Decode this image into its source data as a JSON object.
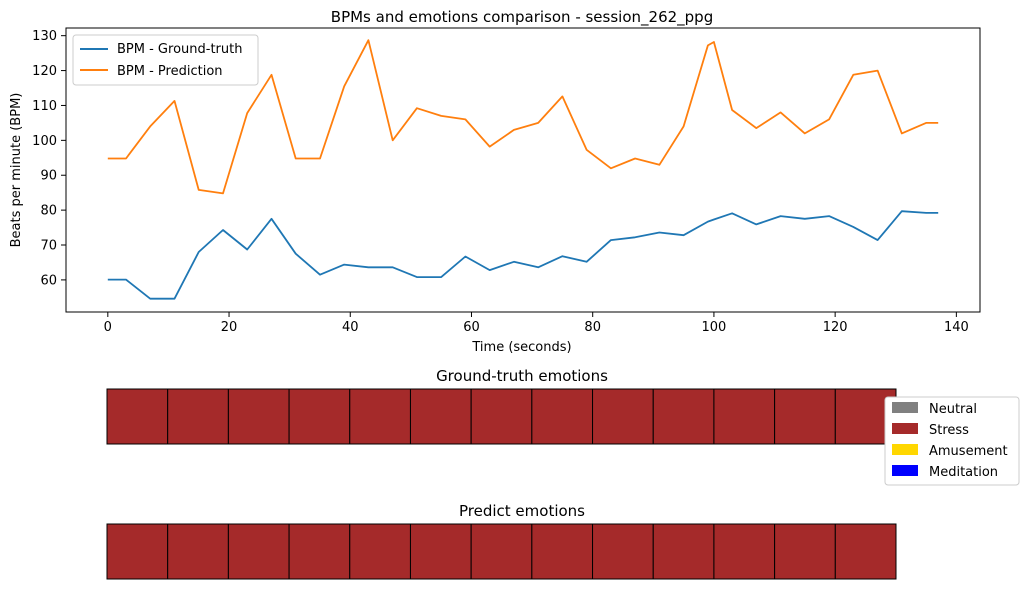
{
  "chart_data": [
    {
      "type": "line",
      "title": "BPMs and emotions comparison - session_262_ppg",
      "xlabel": "Time (seconds)",
      "ylabel": "Beats per minute (BPM)",
      "xlim": [
        -6.9,
        143.9
      ],
      "ylim": [
        50.8,
        132.2
      ],
      "xticks": [
        0,
        20,
        40,
        60,
        80,
        100,
        120,
        140
      ],
      "yticks": [
        60,
        70,
        80,
        90,
        100,
        110,
        120,
        130
      ],
      "grid": false,
      "legend_position": "top-left",
      "x": [
        0,
        3,
        7,
        11,
        15,
        19,
        23,
        27,
        31,
        35,
        39,
        43,
        47,
        51,
        55,
        59,
        63,
        67,
        71,
        75,
        79,
        83,
        87,
        91,
        95,
        99,
        100,
        103,
        107,
        111,
        115,
        119,
        123,
        127,
        131,
        135,
        137
      ],
      "series": [
        {
          "name": "BPM - Ground-truth",
          "color": "#1f77b4",
          "values": [
            60.1,
            60.1,
            54.6,
            54.6,
            68.0,
            74.3,
            68.7,
            77.5,
            67.5,
            61.5,
            64.4,
            63.6,
            63.6,
            60.8,
            60.8,
            66.7,
            62.8,
            65.2,
            63.6,
            66.8,
            65.2,
            71.4,
            72.2,
            73.6,
            72.8,
            76.7,
            77.3,
            79.1,
            75.9,
            78.3,
            77.5,
            78.3,
            75.2,
            71.4,
            79.7,
            79.2,
            79.2
          ]
        },
        {
          "name": "BPM - Prediction",
          "color": "#ff7f0e",
          "values": [
            94.8,
            94.8,
            104.0,
            111.3,
            85.8,
            84.8,
            107.8,
            118.8,
            94.8,
            94.8,
            115.5,
            128.7,
            100.0,
            109.2,
            107.0,
            106.0,
            98.2,
            103.0,
            105.0,
            112.6,
            97.3,
            92.0,
            94.8,
            93.0,
            104.0,
            127.2,
            128.2,
            108.7,
            103.5,
            108.0,
            102.0,
            106.0,
            118.8,
            120.0,
            102.0,
            105.0,
            105.0
          ]
        }
      ]
    },
    {
      "type": "heatmap",
      "title": "Ground-truth emotions",
      "cells": [
        "Stress",
        "Stress",
        "Stress",
        "Stress",
        "Stress",
        "Stress",
        "Stress",
        "Stress",
        "Stress",
        "Stress",
        "Stress",
        "Stress",
        "Stress"
      ]
    },
    {
      "type": "heatmap",
      "title": "Predict emotions",
      "cells": [
        "Stress",
        "Stress",
        "Stress",
        "Stress",
        "Stress",
        "Stress",
        "Stress",
        "Stress",
        "Stress",
        "Stress",
        "Stress",
        "Stress",
        "Stress"
      ]
    }
  ],
  "emotion_legend": {
    "position": "right",
    "entries": [
      {
        "label": "Neutral",
        "color": "#808080"
      },
      {
        "label": "Stress",
        "color": "#a52a2a"
      },
      {
        "label": "Amusement",
        "color": "#ffd700"
      },
      {
        "label": "Meditation",
        "color": "#0000ff"
      }
    ]
  }
}
